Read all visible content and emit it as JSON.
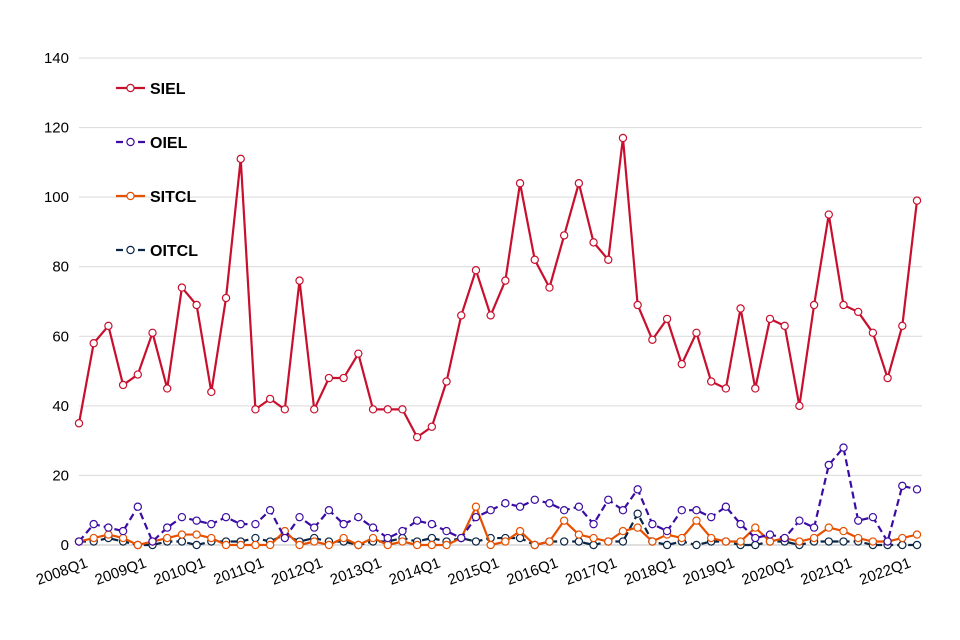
{
  "chart_data": {
    "type": "line",
    "title": "",
    "xlabel": "",
    "ylabel": "",
    "ylim": [
      0,
      140
    ],
    "yticks": [
      0,
      20,
      40,
      60,
      80,
      100,
      120,
      140
    ],
    "grid": "horizontal",
    "legend_position": "top-left",
    "x_tick_labels": [
      "2008Q1",
      "2009Q1",
      "2010Q1",
      "2011Q1",
      "2012Q1",
      "2013Q1",
      "2014Q1",
      "2015Q1",
      "2016Q1",
      "2017Q1",
      "2018Q1",
      "2019Q1",
      "2020Q1",
      "2021Q1",
      "2022Q1"
    ],
    "categories": [
      "2008Q1",
      "2008Q2",
      "2008Q3",
      "2008Q4",
      "2009Q1",
      "2009Q2",
      "2009Q3",
      "2009Q4",
      "2010Q1",
      "2010Q2",
      "2010Q3",
      "2010Q4",
      "2011Q1",
      "2011Q2",
      "2011Q3",
      "2011Q4",
      "2012Q1",
      "2012Q2",
      "2012Q3",
      "2012Q4",
      "2013Q1",
      "2013Q2",
      "2013Q3",
      "2013Q4",
      "2014Q1",
      "2014Q2",
      "2014Q3",
      "2014Q4",
      "2015Q1",
      "2015Q2",
      "2015Q3",
      "2015Q4",
      "2016Q1",
      "2016Q2",
      "2016Q3",
      "2016Q4",
      "2017Q1",
      "2017Q2",
      "2017Q3",
      "2017Q4",
      "2018Q1",
      "2018Q2",
      "2018Q3",
      "2018Q4",
      "2019Q1",
      "2019Q2",
      "2019Q3",
      "2019Q4",
      "2020Q1",
      "2020Q2",
      "2020Q3",
      "2020Q4",
      "2021Q1",
      "2021Q2",
      "2021Q3",
      "2021Q4",
      "2022Q1",
      "2022Q2"
    ],
    "series": [
      {
        "name": "SIEL",
        "color": "#c8102e",
        "dashed": false,
        "values": [
          35,
          58,
          63,
          46,
          49,
          61,
          45,
          74,
          69,
          44,
          71,
          111,
          39,
          42,
          39,
          76,
          39,
          48,
          48,
          55,
          39,
          39,
          39,
          31,
          34,
          47,
          66,
          79,
          66,
          76,
          104,
          82,
          74,
          89,
          104,
          87,
          82,
          117,
          69,
          59,
          65,
          52,
          61,
          47,
          45,
          68,
          45,
          65,
          63,
          40,
          69,
          95,
          69,
          67,
          61,
          48,
          63,
          99
        ]
      },
      {
        "name": "OIEL",
        "color": "#3b0ca3",
        "dashed": true,
        "values": [
          1,
          6,
          5,
          4,
          11,
          1,
          5,
          8,
          7,
          6,
          8,
          6,
          6,
          10,
          2,
          8,
          5,
          10,
          6,
          8,
          5,
          2,
          4,
          7,
          6,
          4,
          2,
          8,
          10,
          12,
          11,
          13,
          12,
          10,
          11,
          6,
          13,
          10,
          16,
          6,
          4,
          10,
          10,
          8,
          11,
          6,
          2,
          3,
          2,
          7,
          5,
          23,
          28,
          7,
          8,
          1,
          17,
          16
        ]
      },
      {
        "name": "SITCL",
        "color": "#e65100",
        "dashed": false,
        "values": [
          1,
          2,
          3,
          2,
          0,
          1,
          2,
          3,
          3,
          2,
          0,
          0,
          0,
          0,
          4,
          0,
          1,
          0,
          2,
          0,
          2,
          0,
          1,
          0,
          0,
          0,
          2,
          11,
          0,
          1,
          4,
          0,
          1,
          7,
          3,
          2,
          1,
          4,
          5,
          1,
          3,
          2,
          7,
          2,
          1,
          1,
          5,
          1,
          2,
          1,
          2,
          5,
          4,
          2,
          1,
          1,
          2,
          3
        ]
      },
      {
        "name": "OITCL",
        "color": "#0b2545",
        "dashed": true,
        "values": [
          1,
          1,
          2,
          1,
          0,
          0,
          1,
          1,
          0,
          1,
          1,
          1,
          2,
          1,
          3,
          1,
          2,
          1,
          1,
          0,
          1,
          1,
          2,
          1,
          2,
          1,
          2,
          1,
          2,
          2,
          2,
          0,
          1,
          1,
          1,
          0,
          1,
          1,
          9,
          1,
          0,
          1,
          0,
          1,
          1,
          0,
          0,
          1,
          1,
          0,
          1,
          1,
          1,
          1,
          0,
          0,
          0,
          0
        ]
      }
    ]
  }
}
